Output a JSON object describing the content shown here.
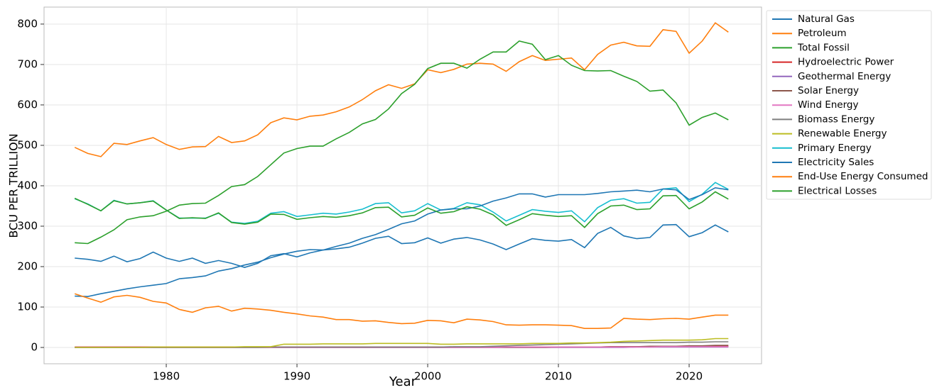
{
  "chart_data": {
    "type": "line",
    "xlabel": "Year",
    "ylabel": "BCU PER TRILLION",
    "x": [
      1973,
      1974,
      1975,
      1976,
      1977,
      1978,
      1979,
      1980,
      1981,
      1982,
      1983,
      1984,
      1985,
      1986,
      1987,
      1988,
      1989,
      1990,
      1991,
      1992,
      1993,
      1994,
      1995,
      1996,
      1997,
      1998,
      1999,
      2000,
      2001,
      2002,
      2003,
      2004,
      2005,
      2006,
      2007,
      2008,
      2009,
      2010,
      2011,
      2012,
      2013,
      2014,
      2015,
      2016,
      2017,
      2018,
      2019,
      2020,
      2021,
      2022,
      2023
    ],
    "xlim": [
      1970.65,
      2025.54
    ],
    "xticks": [
      1980,
      1990,
      2000,
      2010,
      2020
    ],
    "ylim": [
      -40.35,
      842
    ],
    "yticks": [
      0,
      100,
      200,
      300,
      400,
      500,
      600,
      700,
      800
    ],
    "grid": true,
    "legend": "outside-right",
    "series": [
      {
        "name": "Natural Gas",
        "color": "#1f77b4",
        "values": [
          221,
          218,
          213,
          226,
          212,
          220,
          236,
          221,
          213,
          221,
          208,
          215,
          208,
          198,
          208,
          227,
          232,
          224,
          234,
          241,
          244,
          248,
          258,
          270,
          275,
          257,
          259,
          271,
          258,
          268,
          272,
          266,
          256,
          242,
          256,
          269,
          265,
          263,
          267,
          247,
          282,
          297,
          276,
          269,
          272,
          303,
          304,
          274,
          284,
          303,
          286
        ]
      },
      {
        "name": "Petroleum",
        "color": "#ff7f0e",
        "values": [
          495,
          480,
          472,
          505,
          502,
          511,
          519,
          502,
          490,
          496,
          497,
          522,
          507,
          511,
          526,
          556,
          568,
          563,
          572,
          575,
          583,
          595,
          613,
          635,
          650,
          641,
          652,
          687,
          680,
          688,
          701,
          703,
          701,
          683,
          707,
          722,
          710,
          713,
          716,
          687,
          725,
          748,
          755,
          746,
          745,
          786,
          782,
          728,
          758,
          803,
          780
        ]
      },
      {
        "name": "Total Fossil",
        "color": "#2ca02c",
        "values": [
          259,
          257,
          273,
          291,
          316,
          323,
          326,
          337,
          352,
          356,
          357,
          376,
          398,
          403,
          423,
          452,
          481,
          492,
          498,
          498,
          516,
          532,
          553,
          564,
          590,
          628,
          651,
          690,
          703,
          703,
          691,
          713,
          731,
          731,
          758,
          750,
          712,
          722,
          698,
          685,
          684,
          685,
          671,
          658,
          634,
          637,
          605,
          550,
          569,
          580,
          563
        ]
      },
      {
        "name": "Hydroelectric Power",
        "color": "#d62728",
        "values": [
          1,
          1,
          1,
          1,
          1,
          1,
          1,
          1,
          1,
          1,
          1,
          1,
          1,
          1,
          1,
          1,
          1,
          1,
          1,
          1,
          1,
          1,
          1,
          1,
          1,
          1,
          1,
          1,
          1,
          1,
          1,
          1,
          1,
          1,
          1,
          1,
          1,
          1,
          1,
          1,
          1,
          2,
          2,
          2,
          2,
          2,
          2,
          2,
          2,
          3,
          3
        ]
      },
      {
        "name": "Geothermal Energy",
        "color": "#9467bd",
        "values": [
          0,
          0,
          0,
          0,
          0,
          0,
          0,
          0,
          0,
          0,
          0,
          0,
          0,
          0,
          0,
          0,
          0,
          0,
          0,
          0,
          0,
          0,
          0,
          0,
          0,
          0,
          0,
          0,
          0,
          0,
          0,
          0,
          0,
          0,
          0,
          0,
          0,
          0,
          0,
          0,
          0,
          0,
          0,
          1,
          1,
          1,
          1,
          1,
          1,
          1,
          1
        ]
      },
      {
        "name": "Solar Energy",
        "color": "#8c564b",
        "values": [
          0,
          0,
          0,
          0,
          0,
          0,
          0,
          0,
          0,
          0,
          0,
          0,
          0,
          0,
          0,
          0,
          0,
          0,
          0,
          0,
          0,
          0,
          0,
          0,
          0,
          0,
          0,
          0,
          0,
          0,
          0,
          0,
          0,
          0,
          0,
          0,
          0,
          1,
          1,
          1,
          1,
          2,
          2,
          2,
          3,
          3,
          3,
          4,
          4,
          5,
          5
        ]
      },
      {
        "name": "Wind Energy",
        "color": "#e377c2",
        "values": [
          0,
          0,
          0,
          0,
          0,
          0,
          0,
          0,
          0,
          0,
          0,
          0,
          0,
          0,
          0,
          0,
          0,
          0,
          0,
          0,
          0,
          0,
          0,
          0,
          0,
          0,
          0,
          0,
          0,
          0,
          0,
          0,
          0,
          1,
          1,
          1,
          1,
          1,
          1,
          1,
          1,
          1,
          1,
          1,
          1,
          2,
          2,
          2,
          2,
          2,
          2
        ]
      },
      {
        "name": "Biomass Energy",
        "color": "#7f7f7f",
        "values": [
          0,
          0,
          0,
          0,
          0,
          0,
          0,
          0,
          0,
          0,
          0,
          0,
          0,
          0,
          0,
          1,
          1,
          1,
          1,
          1,
          1,
          1,
          1,
          1,
          1,
          1,
          1,
          1,
          1,
          2,
          2,
          2,
          3,
          4,
          5,
          6,
          7,
          8,
          9,
          10,
          11,
          12,
          12,
          12,
          12,
          12,
          12,
          13,
          13,
          14,
          14
        ]
      },
      {
        "name": "Renewable Energy",
        "color": "#bcbd22",
        "values": [
          0,
          0,
          0,
          0,
          0,
          0,
          1,
          1,
          1,
          1,
          1,
          1,
          1,
          2,
          2,
          2,
          8,
          8,
          8,
          9,
          9,
          9,
          9,
          10,
          10,
          10,
          10,
          10,
          8,
          8,
          9,
          9,
          9,
          9,
          9,
          10,
          10,
          10,
          11,
          11,
          12,
          13,
          15,
          16,
          17,
          18,
          18,
          18,
          19,
          22,
          22
        ]
      },
      {
        "name": "Primary Energy",
        "color": "#17becf",
        "values": [
          368,
          355,
          338,
          364,
          355,
          358,
          363,
          340,
          320,
          320,
          320,
          332,
          310,
          307,
          312,
          332,
          336,
          324,
          328,
          332,
          330,
          335,
          342,
          356,
          358,
          333,
          338,
          356,
          340,
          344,
          358,
          353,
          335,
          313,
          327,
          341,
          337,
          334,
          338,
          311,
          346,
          364,
          368,
          357,
          359,
          392,
          395,
          361,
          379,
          408,
          391
        ]
      },
      {
        "name": "Electricity Sales",
        "color": "#1f77b4",
        "values": [
          127,
          126,
          133,
          139,
          145,
          150,
          154,
          158,
          170,
          173,
          177,
          189,
          195,
          204,
          211,
          222,
          231,
          238,
          242,
          241,
          250,
          258,
          270,
          279,
          292,
          306,
          313,
          330,
          340,
          343,
          343,
          350,
          362,
          370,
          380,
          380,
          372,
          378,
          378,
          378,
          381,
          385,
          387,
          389,
          385,
          392,
          390,
          366,
          378,
          395,
          390
        ]
      },
      {
        "name": "End-Use Energy Consumed",
        "color": "#ff7f0e",
        "values": [
          133,
          122,
          112,
          125,
          129,
          124,
          114,
          110,
          94,
          87,
          98,
          102,
          90,
          97,
          95,
          92,
          87,
          83,
          78,
          75,
          69,
          69,
          65,
          66,
          62,
          59,
          60,
          67,
          66,
          61,
          70,
          68,
          64,
          56,
          55,
          56,
          56,
          55,
          54,
          47,
          47,
          48,
          72,
          70,
          69,
          71,
          72,
          70,
          75,
          80,
          80
        ]
      },
      {
        "name": "Electrical Losses",
        "color": "#2ca02c",
        "values": [
          369,
          354,
          338,
          363,
          355,
          358,
          362,
          340,
          319,
          321,
          319,
          333,
          309,
          305,
          310,
          330,
          329,
          317,
          321,
          324,
          322,
          326,
          333,
          346,
          347,
          323,
          327,
          345,
          332,
          336,
          348,
          342,
          328,
          302,
          316,
          331,
          327,
          324,
          326,
          297,
          331,
          350,
          352,
          341,
          343,
          375,
          376,
          343,
          360,
          385,
          367
        ]
      }
    ]
  }
}
